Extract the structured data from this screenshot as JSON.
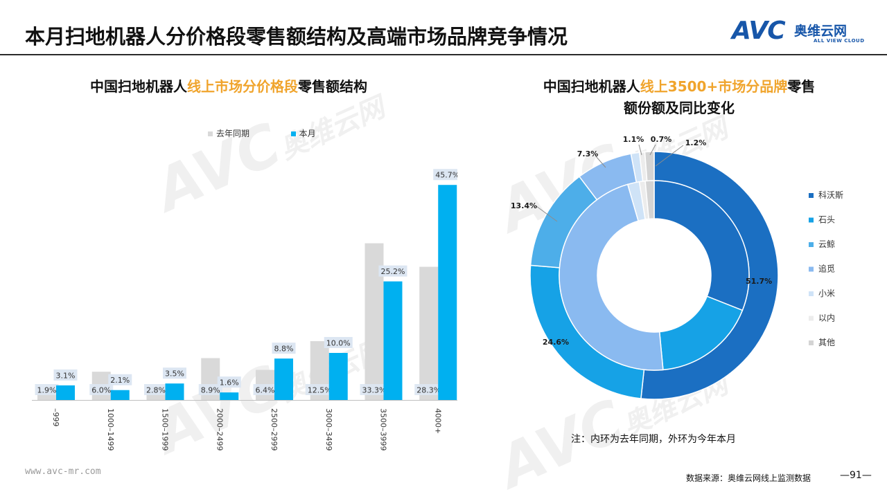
{
  "page": {
    "title": "本月扫地机器人分价格段零售额结构及高端市场品牌竞争情况",
    "logo_text": "AVC",
    "logo_cn": "奥维云网",
    "logo_en": "ALL VIEW CLOUD",
    "footer_url": "www.avc-mr.com",
    "footer_source": "数据来源：奥维云网线上监测数据",
    "page_number": "—91—",
    "note": "注：内环为去年同期，外环为今年本月"
  },
  "watermark": {
    "brand": "AVC",
    "cn": "奥维云网",
    "en": "ALL VIEW CLOUD"
  },
  "left_chart": {
    "title_part1": "中国扫地机器人",
    "title_highlight": "线上市场分价格段",
    "title_part2": "零售额结构"
  },
  "right_chart": {
    "title_part1": "中国扫地机器人",
    "title_highlight": "线上3500+市场分品牌",
    "title_part2": "零售",
    "title_line2": "额份额及同比变化"
  },
  "colors": {
    "last_year": "#d9d9d9",
    "this_month": "#00b0f0",
    "highlight": "#f0a42c",
    "label_bg": "#dce6f2"
  },
  "chart_data": [
    {
      "type": "bar",
      "title": "中国扫地机器人线上市场分价格段零售额结构",
      "categories": [
        "-999",
        "1000-1499",
        "1500-1999",
        "2000-2499",
        "2500-2999",
        "3000-3499",
        "3500-3999",
        "4000+"
      ],
      "series": [
        {
          "name": "去年同期",
          "values": [
            1.9,
            6.0,
            2.8,
            8.9,
            6.4,
            12.5,
            33.3,
            28.3
          ],
          "labels": [
            "1.9%",
            "6.0%",
            "2.8%",
            "8.9%",
            "6.4%",
            "12.5%",
            "33.3%",
            "28.3%"
          ]
        },
        {
          "name": "本月",
          "values": [
            3.1,
            2.1,
            3.5,
            1.6,
            8.8,
            10.0,
            25.2,
            45.7
          ],
          "labels": [
            "3.1%",
            "2.1%",
            "3.5%",
            "1.6%",
            "8.8%",
            "10.0%",
            "25.2%",
            "45.7%"
          ]
        }
      ],
      "ylim": [
        0,
        50
      ],
      "legend": "top"
    },
    {
      "type": "pie",
      "subtype": "donut-two-ring",
      "title": "中国扫地机器人线上3500+市场分品牌零售额份额及同比变化",
      "categories": [
        "科沃斯",
        "石头",
        "云鲸",
        "追觅",
        "小米",
        "以内",
        "其他"
      ],
      "colors": [
        "#1b6fc2",
        "#16a2e6",
        "#4daee9",
        "#8abaf0",
        "#cfe3f7",
        "#ececec",
        "#d4d4d4"
      ],
      "series": [
        {
          "name": "本月",
          "ring": "outer",
          "values": [
            51.7,
            24.6,
            13.4,
            7.3,
            1.1,
            0.7,
            1.2
          ],
          "labels": [
            "51.7%",
            "24.6%",
            "13.4%",
            "7.3%",
            "1.1%",
            "0.7%",
            "1.2%"
          ]
        },
        {
          "name": "去年同期",
          "ring": "inner",
          "values": [
            31.0,
            17.5,
            0.0,
            47.0,
            2.0,
            1.0,
            1.5
          ]
        }
      ],
      "legend": "right"
    }
  ]
}
